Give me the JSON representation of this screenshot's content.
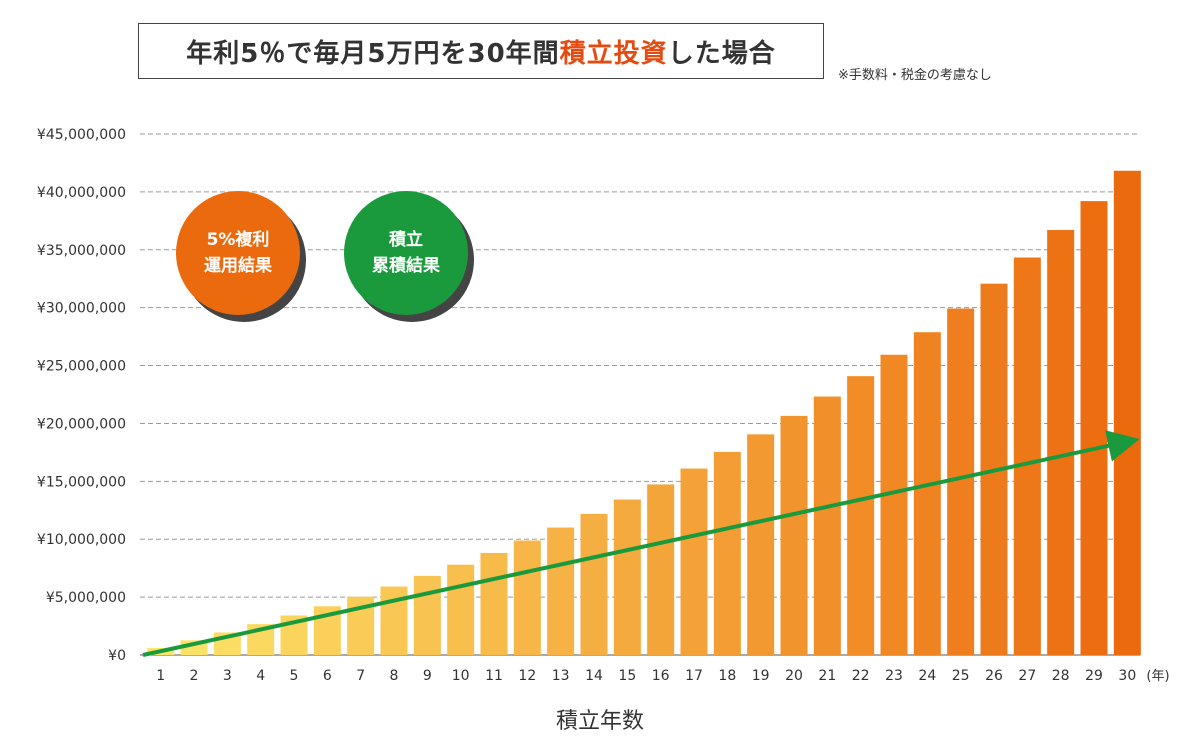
{
  "title": {
    "part1": "年利5％で毎月5万円を30年間",
    "accent": "積立投資",
    "part2": "した場合"
  },
  "note": "※手数料・税金の考慮なし",
  "badges": {
    "compound": {
      "line1": "5%複利",
      "line2": "運用結果"
    },
    "principal": {
      "line1": "積立",
      "line2": "累積結果"
    }
  },
  "colors": {
    "accent": "#e64a0f",
    "orange_badge": "#ec6a0e",
    "green_badge": "#1b9a3d",
    "arrow": "#1b9a3d",
    "bar_start": "#fde56a",
    "bar_end": "#ec6a0e"
  },
  "chart_data": {
    "type": "bar",
    "xlabel": "積立年数",
    "x_unit": "(年)",
    "categories": [
      "1",
      "2",
      "3",
      "4",
      "5",
      "6",
      "7",
      "8",
      "9",
      "10",
      "11",
      "12",
      "13",
      "14",
      "15",
      "16",
      "17",
      "18",
      "19",
      "20",
      "21",
      "22",
      "23",
      "24",
      "25",
      "26",
      "27",
      "28",
      "29",
      "30"
    ],
    "series": [
      {
        "values": [
          616700,
          1264980,
          1946410,
          2662760,
          3415770,
          4207320,
          5039390,
          5914050,
          6833490,
          7800010,
          8815990,
          9883990,
          11006680,
          12186840,
          13427440,
          14731560,
          16102450,
          17543520,
          19058390,
          20650840,
          22324870,
          24084640,
          25934570,
          27879270,
          29923580,
          32072600,
          34331680,
          36706460,
          39202860,
          41827130
        ]
      }
    ],
    "principal_line": {
      "start_value": 0,
      "end_value": 18000000
    },
    "ylim": [
      0,
      45000000
    ],
    "yticks": [
      "¥0",
      "¥5,000,000",
      "¥10,000,000",
      "¥15,000,000",
      "¥20,000,000",
      "¥25,000,000",
      "¥30,000,000",
      "¥35,000,000",
      "¥40,000,000",
      "¥45,000,000"
    ],
    "grid": true
  }
}
